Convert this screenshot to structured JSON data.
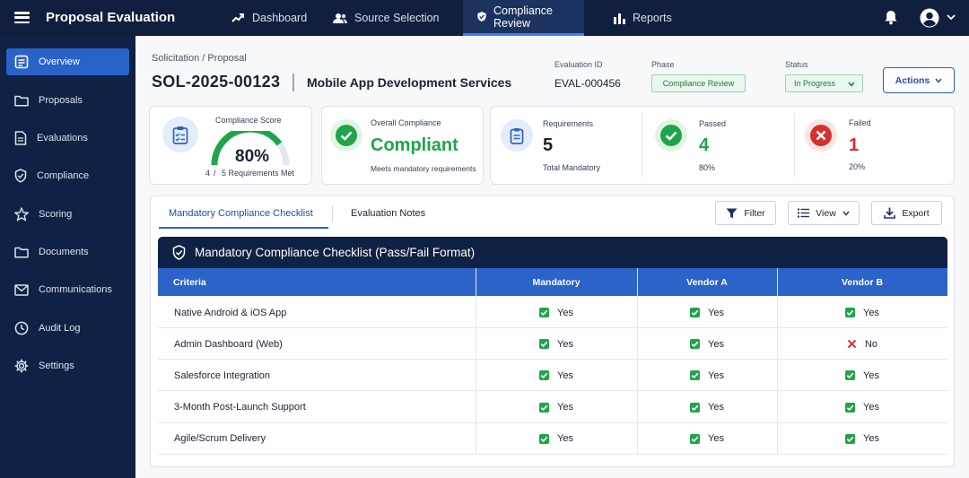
{
  "app": {
    "title": "Proposal Evaluation"
  },
  "nav": [
    {
      "label": "Dashboard",
      "icon": "trending-up-icon"
    },
    {
      "label": "Source Selection",
      "icon": "users-icon"
    },
    {
      "label": "Compliance Review",
      "icon": "shield-check-icon",
      "active": true
    },
    {
      "label": "Reports",
      "icon": "bar-chart-icon"
    }
  ],
  "sidebar": [
    {
      "label": "Overview",
      "icon": "clipboard-icon",
      "active": true
    },
    {
      "label": "Proposals",
      "icon": "folder-icon"
    },
    {
      "label": "Evaluations",
      "icon": "document-icon"
    },
    {
      "label": "Compliance",
      "icon": "shield-icon"
    },
    {
      "label": "Scoring",
      "icon": "star-icon"
    },
    {
      "label": "Documents",
      "icon": "folder-icon"
    },
    {
      "label": "Communications",
      "icon": "mail-icon"
    },
    {
      "label": "Audit Log",
      "icon": "clock-icon"
    },
    {
      "label": "Settings",
      "icon": "gear-icon"
    }
  ],
  "header": {
    "breadcrumb": "Solicitation / Proposal",
    "solicitation_id": "SOL-2025-00123",
    "title": "Mobile App Development Services",
    "evaluation_id_label": "Evaluation ID",
    "evaluation_id": "EVAL-000456",
    "phase_label": "Phase",
    "phase": "Compliance Review",
    "status_label": "Status",
    "status": "In Progress",
    "actions_label": "Actions"
  },
  "summary": {
    "score_label": "Compliance Score",
    "score_value": "80%",
    "score_fraction": 0.8,
    "met_count": "4",
    "met_slash": "/",
    "met_text": "5 Requirements Met",
    "overall_label": "Overall Compliance",
    "overall_value": "Compliant",
    "overall_sub": "Meets mandatory requirements",
    "req_label": "Requirements",
    "req_value": "5",
    "req_sub": "Total Mandatory",
    "passed_label": "Passed",
    "passed_value": "4",
    "passed_sub": "80%",
    "failed_label": "Failed",
    "failed_value": "1",
    "failed_sub": "20%"
  },
  "tabs": [
    {
      "label": "Mandatory Compliance Checklist",
      "active": true
    },
    {
      "label": "Evaluation Notes"
    }
  ],
  "toolbar": {
    "filter": "Filter",
    "view": "View",
    "export": "Export"
  },
  "table": {
    "title": "Mandatory Compliance Checklist (Pass/Fail Format)",
    "columns": [
      "Criteria",
      "Mandatory",
      "Vendor A",
      "Vendor B"
    ],
    "rows": [
      {
        "criteria": "Native Android & iOS App",
        "mandatory": "Yes",
        "vendor_a": "Yes",
        "vendor_b": "Yes",
        "b_pass": true
      },
      {
        "criteria": "Admin Dashboard (Web)",
        "mandatory": "Yes",
        "vendor_a": "Yes",
        "vendor_b": "No",
        "b_pass": false
      },
      {
        "criteria": "Salesforce Integration",
        "mandatory": "Yes",
        "vendor_a": "Yes",
        "vendor_b": "Yes",
        "b_pass": true
      },
      {
        "criteria": "3-Month Post-Launch Support",
        "mandatory": "Yes",
        "vendor_a": "Yes",
        "vendor_b": "Yes",
        "b_pass": true
      },
      {
        "criteria": "Agile/Scrum Delivery",
        "mandatory": "Yes",
        "vendor_a": "Yes",
        "vendor_b": "Yes",
        "b_pass": true
      }
    ]
  },
  "colors": {
    "brand_dark": "#0f1f3d",
    "accent": "#2c63c9",
    "pass": "#1ea54a",
    "fail": "#d62f2f"
  }
}
